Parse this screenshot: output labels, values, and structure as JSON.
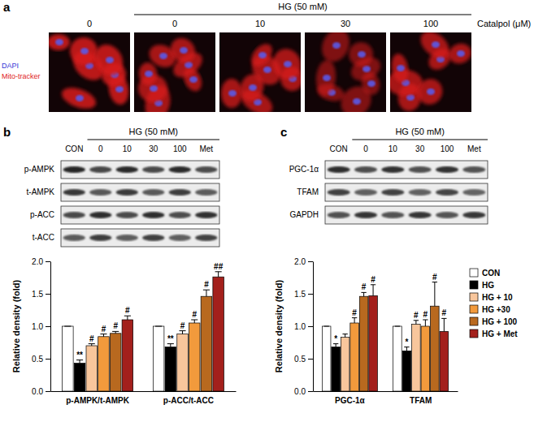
{
  "figure": {
    "panel_labels": [
      "a",
      "b",
      "c"
    ],
    "images": {
      "header": "HG (50 mM)",
      "columns": [
        "0",
        "0",
        "10",
        "30",
        "100"
      ],
      "column_title": "Catalpol (μM)",
      "stain_labels": [
        {
          "text": "DAPI",
          "color": "#3535d6"
        },
        {
          "text": "Mito-tracker",
          "color": "#e01b1b"
        }
      ]
    },
    "blots": [
      {
        "header": "HG (50 mM)",
        "lanes": [
          "CON",
          "0",
          "10",
          "30",
          "100",
          "Met"
        ],
        "rows": [
          "p-AMPK",
          "t-AMPK",
          "p-ACC",
          "t-ACC"
        ]
      },
      {
        "header": "HG (50 mM)",
        "lanes": [
          "CON",
          "0",
          "10",
          "30",
          "100",
          "Met"
        ],
        "rows": [
          "PGC-1α",
          "TFAM",
          "GAPDH"
        ]
      }
    ]
  },
  "chart_data": [
    {
      "type": "bar",
      "categories": [
        "p-AMPK/t-AMPK",
        "p-ACC/t-ACC"
      ],
      "y_label": "Relative density (fold)",
      "ylim": [
        0,
        2.0
      ],
      "yticks": [
        {
          "value": 0,
          "label": "0.0"
        },
        {
          "value": 0.5,
          "label": "0.5"
        },
        {
          "value": 1.0,
          "label": "1.0"
        },
        {
          "value": 1.5,
          "label": "1.5"
        },
        {
          "value": 2.0,
          "label": "2.0"
        }
      ],
      "series": [
        {
          "color": "#ffffff",
          "values": [
            1.0,
            1.0
          ],
          "errors": [
            0,
            0
          ],
          "significance": [
            null,
            null
          ]
        },
        {
          "color": "#000000",
          "values": [
            0.43,
            0.68
          ],
          "errors": [
            0.05,
            0.05
          ],
          "significance": [
            "**",
            "**"
          ]
        },
        {
          "color": "#f8c69c",
          "values": [
            0.7,
            0.88
          ],
          "errors": [
            0.03,
            0.05
          ],
          "significance": [
            "#",
            "#"
          ]
        },
        {
          "color": "#f29a3c",
          "values": [
            0.84,
            1.05
          ],
          "errors": [
            0.04,
            0.05
          ],
          "significance": [
            "#",
            "#"
          ]
        },
        {
          "color": "#b8691f",
          "values": [
            0.89,
            1.46
          ],
          "errors": [
            0.03,
            0.1
          ],
          "significance": [
            "#",
            "#"
          ]
        },
        {
          "color": "#a3201c",
          "values": [
            1.1,
            1.76
          ],
          "errors": [
            0.06,
            0.08
          ],
          "significance": [
            "#",
            "##"
          ]
        }
      ]
    },
    {
      "type": "bar",
      "categories": [
        "PGC-1α",
        "TFAM"
      ],
      "y_label": "Relative density (fold)",
      "ylim": [
        0,
        2.0
      ],
      "yticks": [
        {
          "value": 0,
          "label": "0.0"
        },
        {
          "value": 0.5,
          "label": "0.5"
        },
        {
          "value": 1.0,
          "label": "1.0"
        },
        {
          "value": 1.5,
          "label": "1.5"
        },
        {
          "value": 2.0,
          "label": "2.0"
        }
      ],
      "legend": "right",
      "series": [
        {
          "name": "CON",
          "color": "#ffffff",
          "values": [
            1.0,
            1.0
          ],
          "errors": [
            0,
            0
          ],
          "significance": [
            null,
            null
          ]
        },
        {
          "name": "HG",
          "color": "#000000",
          "values": [
            0.68,
            0.62
          ],
          "errors": [
            0.05,
            0.06
          ],
          "significance": [
            "*",
            "*"
          ]
        },
        {
          "name": "HG + 10",
          "color": "#f8c69c",
          "values": [
            0.83,
            1.03
          ],
          "errors": [
            0.05,
            0.06
          ],
          "significance": [
            null,
            "#"
          ]
        },
        {
          "name": "HG +30",
          "color": "#f29a3c",
          "values": [
            1.05,
            1.0
          ],
          "errors": [
            0.08,
            0.1
          ],
          "significance": [
            "#",
            "#"
          ]
        },
        {
          "name": "HG + 100",
          "color": "#b8691f",
          "values": [
            1.46,
            1.31
          ],
          "errors": [
            0.06,
            0.37
          ],
          "significance": [
            "#",
            "#"
          ]
        },
        {
          "name": "HG + Met",
          "color": "#a3201c",
          "values": [
            1.47,
            0.92
          ],
          "errors": [
            0.17,
            0.2
          ],
          "significance": [
            "#",
            "#"
          ]
        }
      ]
    }
  ]
}
